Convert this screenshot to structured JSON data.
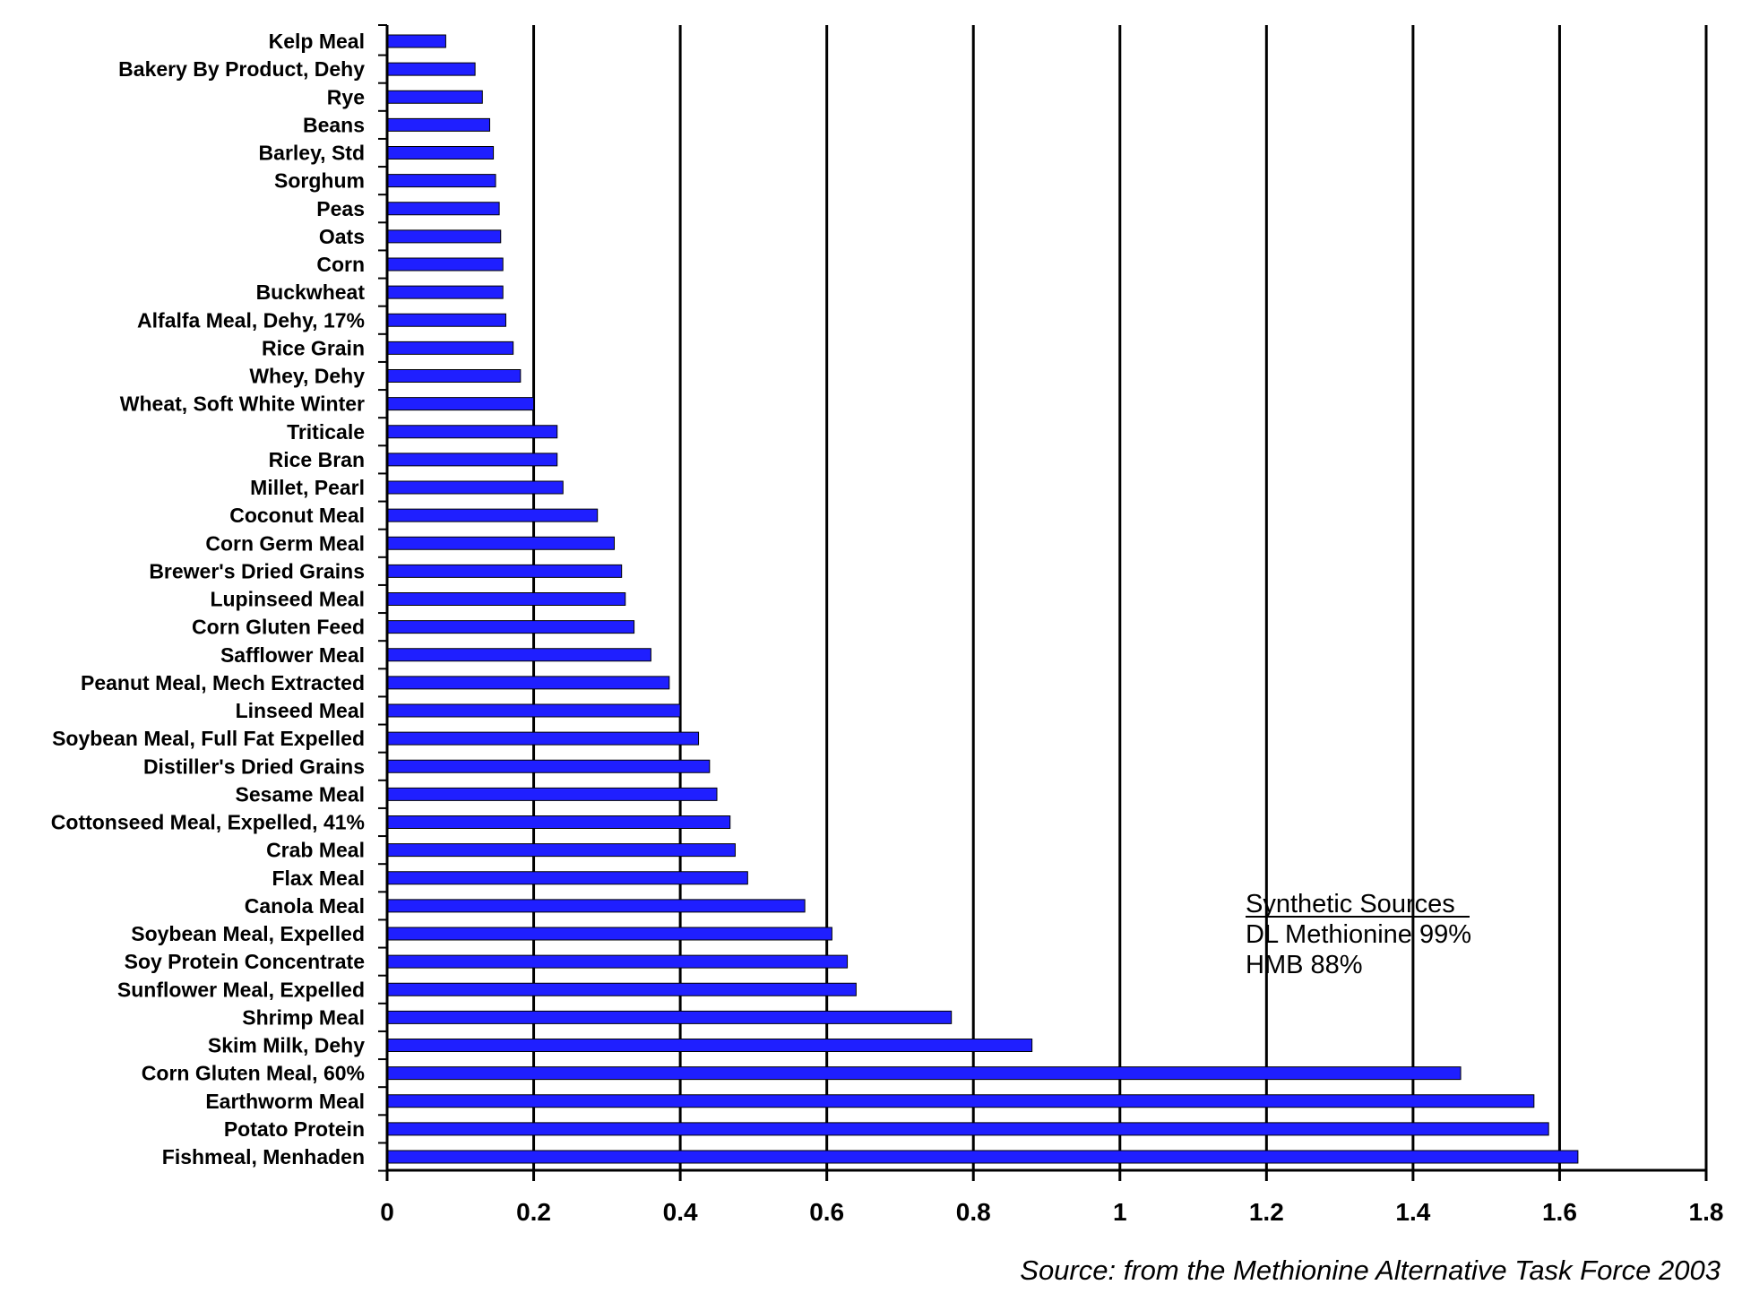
{
  "chart_data": {
    "type": "bar",
    "orientation": "horizontal",
    "categories": [
      "Kelp Meal",
      "Bakery By Product, Dehy",
      "Rye",
      "Beans",
      "Barley, Std",
      "Sorghum",
      "Peas",
      "Oats",
      "Corn",
      "Buckwheat",
      "Alfalfa Meal, Dehy, 17%",
      "Rice Grain",
      "Whey, Dehy",
      "Wheat, Soft White Winter",
      "Triticale",
      "Rice Bran",
      "Millet, Pearl",
      "Coconut Meal",
      "Corn Germ Meal",
      "Brewer's Dried Grains",
      "Lupinseed Meal",
      "Corn Gluten Feed",
      "Safflower Meal",
      "Peanut Meal, Mech Extracted",
      "Linseed Meal",
      "Soybean Meal, Full Fat Expelled",
      "Distiller's Dried Grains",
      "Sesame Meal",
      "Cottonseed Meal, Expelled, 41%",
      "Crab Meal",
      "Flax Meal",
      "Canola Meal",
      "Soybean Meal, Expelled",
      "Soy Protein Concentrate",
      "Sunflower Meal, Expelled",
      "Shrimp Meal",
      "Skim Milk, Dehy",
      "Corn Gluten Meal, 60%",
      "Earthworm Meal",
      "Potato Protein",
      "Fishmeal, Menhaden"
    ],
    "values": [
      0.08,
      0.12,
      0.13,
      0.14,
      0.145,
      0.148,
      0.153,
      0.155,
      0.158,
      0.158,
      0.162,
      0.172,
      0.182,
      0.2,
      0.232,
      0.232,
      0.24,
      0.287,
      0.31,
      0.32,
      0.325,
      0.337,
      0.36,
      0.385,
      0.4,
      0.425,
      0.44,
      0.45,
      0.468,
      0.475,
      0.492,
      0.57,
      0.607,
      0.628,
      0.64,
      0.77,
      0.88,
      1.465,
      1.565,
      1.585,
      1.625
    ],
    "xlim": [
      0,
      1.8
    ],
    "xticks": [
      "0",
      "0.2",
      "0.4",
      "0.6",
      "0.8",
      "1",
      "1.2",
      "1.4",
      "1.6",
      "1.8"
    ],
    "grid": "vertical",
    "bar_color": "#1f1fff",
    "annotation": {
      "title": "Synthetic  Sources",
      "lines": [
        "DL Methionine 99%",
        "HMB 88%"
      ]
    },
    "source": "Source: from the Methionine Alternative Task Force 2003"
  }
}
